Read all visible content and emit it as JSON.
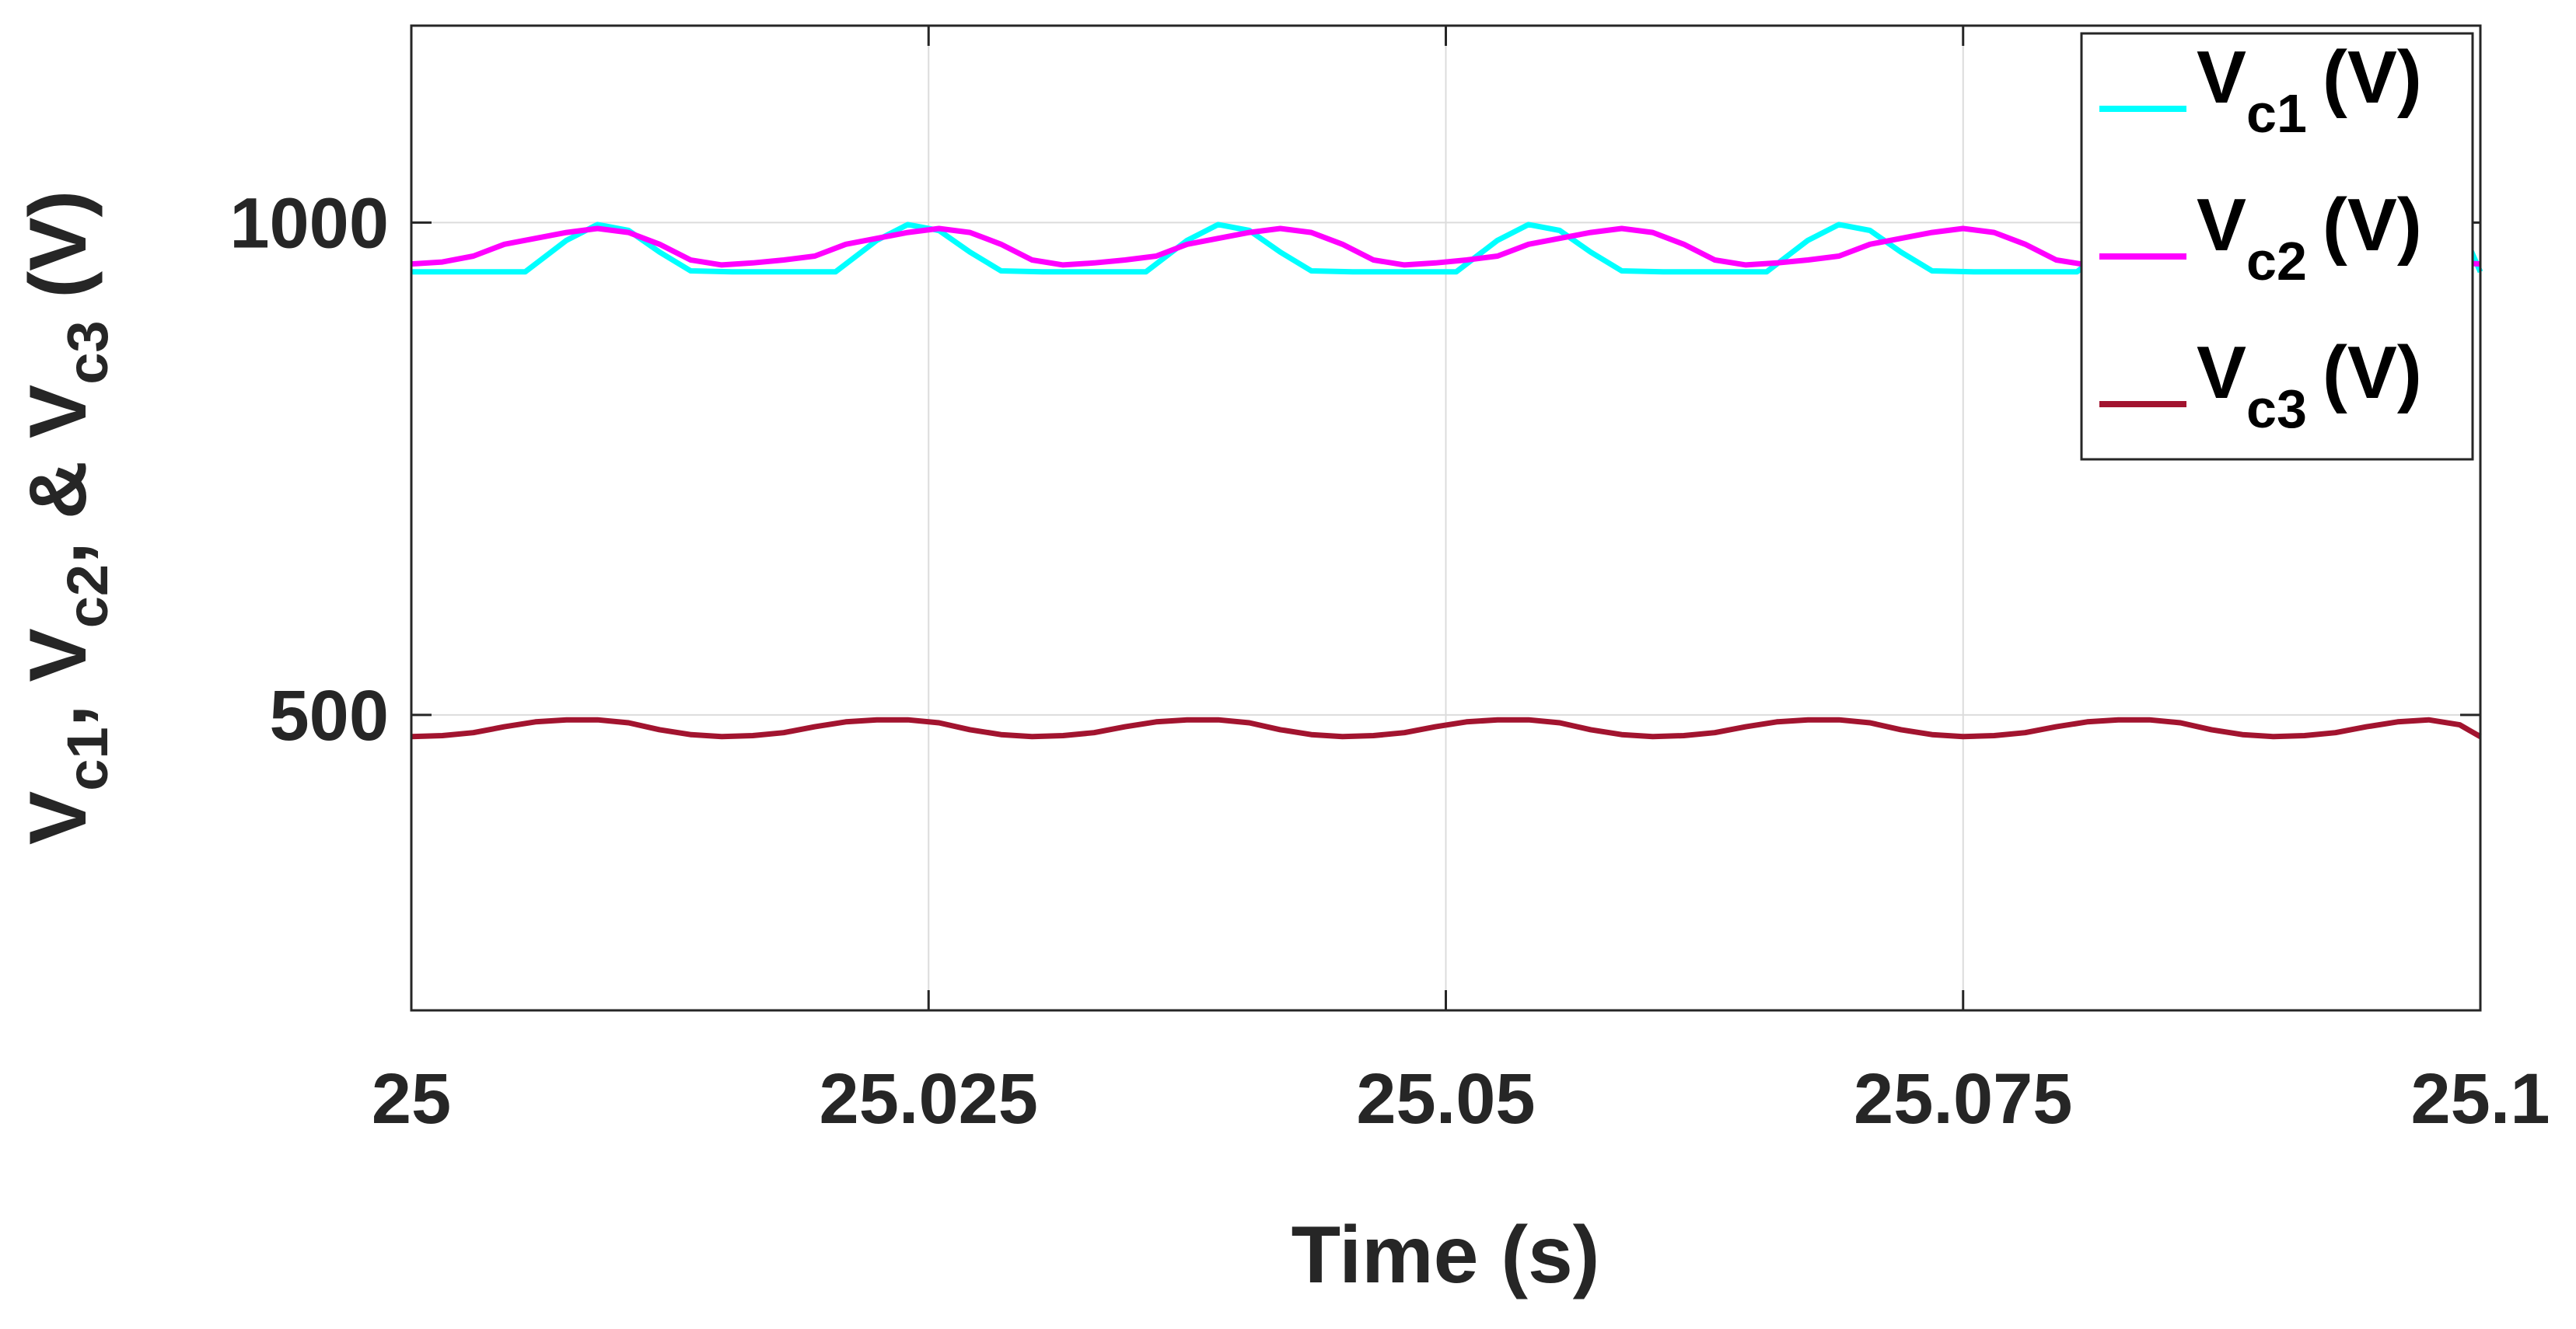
{
  "chart_data": {
    "type": "line",
    "xlabel": "Time (s)",
    "ylabel": {
      "parts": [
        {
          "text": "V",
          "sub": false
        },
        {
          "text": "c1",
          "sub": true
        },
        {
          "text": ", V",
          "sub": false
        },
        {
          "text": "c2",
          "sub": true
        },
        {
          "text": ", & V",
          "sub": false
        },
        {
          "text": "c3",
          "sub": true
        },
        {
          "text": " (V)",
          "sub": false
        }
      ]
    },
    "xlim": [
      25,
      25.1
    ],
    "ylim": [
      200,
      1200
    ],
    "xticks": [
      25,
      25.025,
      25.05,
      25.075,
      25.1
    ],
    "xtick_labels": [
      "25",
      "25.025",
      "25.05",
      "25.075",
      "25.1"
    ],
    "yticks": [
      500,
      1000
    ],
    "ytick_labels": [
      "500",
      "1000"
    ],
    "grid": true,
    "legend_position": "top-right",
    "series": [
      {
        "name": "V_c1 (V)",
        "legend_main": "V",
        "legend_sub": "c1",
        "legend_unit": "(V)",
        "color": "#00FFFF",
        "x": [
          25.0,
          25.004,
          25.0055,
          25.0075,
          25.009,
          25.0105,
          25.012,
          25.0135,
          25.0155,
          25.0175,
          25.0205,
          25.0225,
          25.024,
          25.0255,
          25.027,
          25.0285,
          25.0305,
          25.0325,
          25.0355,
          25.0375,
          25.039,
          25.0405,
          25.042,
          25.0435,
          25.0455,
          25.0475,
          25.0505,
          25.0525,
          25.054,
          25.0555,
          25.057,
          25.0585,
          25.0605,
          25.0625,
          25.0655,
          25.0675,
          25.069,
          25.0705,
          25.072,
          25.0735,
          25.0755,
          25.0775,
          25.0805,
          25.0825,
          25.084,
          25.0855,
          25.087,
          25.0885,
          25.0905,
          25.0925,
          25.0955,
          25.0975,
          25.099,
          25.1
        ],
        "y": [
          950,
          950,
          950,
          982,
          998,
          992,
          970,
          951,
          950,
          950,
          950,
          982,
          998,
          992,
          970,
          951,
          950,
          950,
          950,
          982,
          998,
          992,
          970,
          951,
          950,
          950,
          950,
          982,
          998,
          992,
          970,
          951,
          950,
          950,
          950,
          982,
          998,
          992,
          970,
          951,
          950,
          950,
          950,
          982,
          998,
          992,
          970,
          951,
          950,
          950,
          950,
          982,
          998,
          950
        ]
      },
      {
        "name": "V_c2 (V)",
        "legend_main": "V",
        "legend_sub": "c2",
        "legend_unit": "(V)",
        "color": "#FF00FF",
        "x": [
          25.0,
          25.0015,
          25.003,
          25.0045,
          25.006,
          25.0075,
          25.009,
          25.0105,
          25.012,
          25.0135,
          25.015,
          25.0165,
          25.018,
          25.0195,
          25.021,
          25.0225,
          25.024,
          25.0255,
          25.027,
          25.0285,
          25.03,
          25.0315,
          25.033,
          25.0345,
          25.036,
          25.0375,
          25.039,
          25.0405,
          25.042,
          25.0435,
          25.045,
          25.0465,
          25.048,
          25.0495,
          25.051,
          25.0525,
          25.054,
          25.0555,
          25.057,
          25.0585,
          25.06,
          25.0615,
          25.063,
          25.0645,
          25.066,
          25.0675,
          25.069,
          25.0705,
          25.072,
          25.0735,
          25.075,
          25.0765,
          25.078,
          25.0795,
          25.081,
          25.0825,
          25.084,
          25.0855,
          25.087,
          25.0885,
          25.09,
          25.0915,
          25.093,
          25.0945,
          25.096,
          25.0975,
          25.099,
          25.1
        ],
        "y": [
          958,
          960,
          966,
          978,
          984,
          990,
          994,
          990,
          978,
          962,
          957,
          959,
          962,
          966,
          978,
          984,
          990,
          994,
          990,
          978,
          962,
          957,
          959,
          962,
          966,
          978,
          984,
          990,
          994,
          990,
          978,
          962,
          957,
          959,
          962,
          966,
          978,
          984,
          990,
          994,
          990,
          978,
          962,
          957,
          959,
          962,
          966,
          978,
          984,
          990,
          994,
          990,
          978,
          962,
          957,
          959,
          962,
          966,
          978,
          984,
          990,
          994,
          990,
          978,
          962,
          957,
          959,
          958
        ]
      },
      {
        "name": "V_c3 (V)",
        "legend_main": "V",
        "legend_sub": "c3",
        "legend_unit": "(V)",
        "color": "#A2142F",
        "x": [
          25.0,
          25.0015,
          25.003,
          25.0045,
          25.006,
          25.0075,
          25.009,
          25.0105,
          25.012,
          25.0135,
          25.015,
          25.0165,
          25.018,
          25.0195,
          25.021,
          25.0225,
          25.024,
          25.0255,
          25.027,
          25.0285,
          25.03,
          25.0315,
          25.033,
          25.0345,
          25.036,
          25.0375,
          25.039,
          25.0405,
          25.042,
          25.0435,
          25.045,
          25.0465,
          25.048,
          25.0495,
          25.051,
          25.0525,
          25.054,
          25.0555,
          25.057,
          25.0585,
          25.06,
          25.0615,
          25.063,
          25.0645,
          25.066,
          25.0675,
          25.069,
          25.0705,
          25.072,
          25.0735,
          25.075,
          25.0765,
          25.078,
          25.0795,
          25.081,
          25.0825,
          25.084,
          25.0855,
          25.087,
          25.0885,
          25.09,
          25.0915,
          25.093,
          25.0945,
          25.096,
          25.0975,
          25.099,
          25.1
        ],
        "y": [
          478,
          479,
          482,
          488,
          493,
          495,
          495,
          492,
          485,
          480,
          478,
          479,
          482,
          488,
          493,
          495,
          495,
          492,
          485,
          480,
          478,
          479,
          482,
          488,
          493,
          495,
          495,
          492,
          485,
          480,
          478,
          479,
          482,
          488,
          493,
          495,
          495,
          492,
          485,
          480,
          478,
          479,
          482,
          488,
          493,
          495,
          495,
          492,
          485,
          480,
          478,
          479,
          482,
          488,
          493,
          495,
          495,
          492,
          485,
          480,
          478,
          479,
          482,
          488,
          493,
          495,
          490,
          478
        ]
      }
    ]
  }
}
